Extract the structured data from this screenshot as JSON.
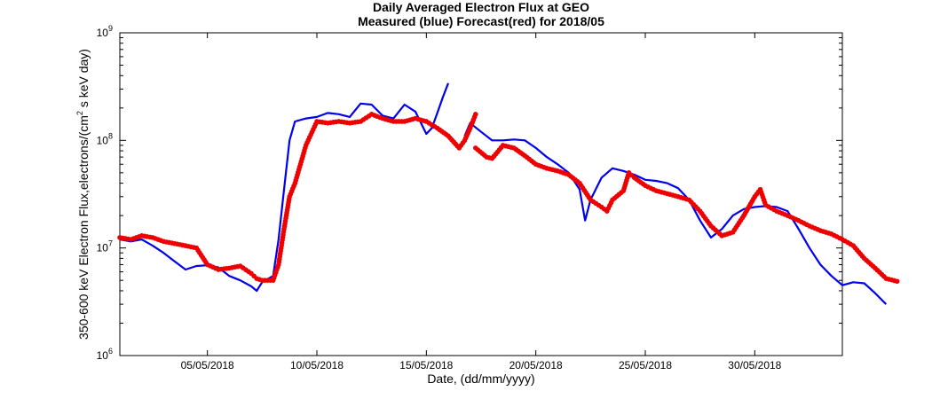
{
  "chart_data": {
    "type": "line",
    "title": "Daily Averaged Electron Flux at GEO",
    "subtitle": "Measured (blue) Forecast(red) for 2018/05",
    "xlabel": "Date, (dd/mm/yyyy)",
    "ylabel_parts": [
      "350-600 keV Electron Flux,electrons/(cm",
      "2",
      " s keV day)"
    ],
    "y_scale": "log",
    "ylim": [
      1000000,
      1000000000
    ],
    "xlim": [
      "2018-05-01",
      "2018-06-03"
    ],
    "x_ticks": [
      {
        "date": "2018-05-05",
        "label": "05/05/2018"
      },
      {
        "date": "2018-05-10",
        "label": "10/05/2018"
      },
      {
        "date": "2018-05-15",
        "label": "15/05/2018"
      },
      {
        "date": "2018-05-20",
        "label": "20/05/2018"
      },
      {
        "date": "2018-05-25",
        "label": "25/05/2018"
      },
      {
        "date": "2018-05-30",
        "label": "30/05/2018"
      }
    ],
    "y_ticks": [
      {
        "value": 1000000,
        "base": "10",
        "exp": "6"
      },
      {
        "value": 10000000,
        "base": "10",
        "exp": "7"
      },
      {
        "value": 100000000,
        "base": "10",
        "exp": "8"
      },
      {
        "value": 1000000000,
        "base": "10",
        "exp": "9"
      }
    ],
    "grid": false,
    "series": [
      {
        "color": "#0000ee",
        "style": "line",
        "segments": [
          [
            [
              "2018-05-01 00:00",
              12000000
            ],
            [
              "2018-05-01 12:00",
              11500000
            ],
            [
              "2018-05-02 00:00",
              12000000
            ],
            [
              "2018-05-02 12:00",
              10500000
            ],
            [
              "2018-05-03 00:00",
              9000000
            ],
            [
              "2018-05-03 12:00",
              7500000
            ],
            [
              "2018-05-04 00:00",
              6300000
            ],
            [
              "2018-05-04 12:00",
              6800000
            ],
            [
              "2018-05-05 00:00",
              6900000
            ],
            [
              "2018-05-05 12:00",
              6600000
            ],
            [
              "2018-05-06 00:00",
              5500000
            ],
            [
              "2018-05-06 12:00",
              5000000
            ],
            [
              "2018-05-07 00:00",
              4400000
            ],
            [
              "2018-05-07 06:00",
              4000000
            ],
            [
              "2018-05-07 12:00",
              4800000
            ],
            [
              "2018-05-08 00:00",
              5500000
            ],
            [
              "2018-05-08 06:00",
              12000000
            ],
            [
              "2018-05-08 12:00",
              35000000
            ],
            [
              "2018-05-08 18:00",
              100000000
            ],
            [
              "2018-05-09 00:00",
              150000000
            ],
            [
              "2018-05-09 12:00",
              160000000
            ],
            [
              "2018-05-10 00:00",
              165000000
            ],
            [
              "2018-05-10 12:00",
              180000000
            ],
            [
              "2018-05-11 00:00",
              175000000
            ],
            [
              "2018-05-11 12:00",
              165000000
            ],
            [
              "2018-05-12 00:00",
              220000000
            ],
            [
              "2018-05-12 12:00",
              215000000
            ],
            [
              "2018-05-13 00:00",
              170000000
            ],
            [
              "2018-05-13 12:00",
              160000000
            ],
            [
              "2018-05-14 00:00",
              215000000
            ],
            [
              "2018-05-14 12:00",
              185000000
            ],
            [
              "2018-05-15 00:00",
              115000000
            ],
            [
              "2018-05-15 06:00",
              130000000
            ],
            [
              "2018-05-15 12:00",
              180000000
            ],
            [
              "2018-05-15 18:00",
              250000000
            ],
            [
              "2018-05-16 00:00",
              340000000
            ]
          ],
          [
            [
              "2018-05-16 18:00",
              110000000
            ],
            [
              "2018-05-17 00:00",
              145000000
            ],
            [
              "2018-05-17 12:00",
              120000000
            ],
            [
              "2018-05-18 00:00",
              100000000
            ],
            [
              "2018-05-18 12:00",
              100000000
            ],
            [
              "2018-05-19 00:00",
              102000000
            ],
            [
              "2018-05-19 12:00",
              100000000
            ],
            [
              "2018-05-20 00:00",
              85000000
            ],
            [
              "2018-05-20 12:00",
              70000000
            ],
            [
              "2018-05-21 00:00",
              60000000
            ],
            [
              "2018-05-21 12:00",
              50000000
            ],
            [
              "2018-05-22 00:00",
              35000000
            ],
            [
              "2018-05-22 06:00",
              18000000
            ],
            [
              "2018-05-22 12:00",
              28000000
            ],
            [
              "2018-05-23 00:00",
              45000000
            ],
            [
              "2018-05-23 12:00",
              55000000
            ],
            [
              "2018-05-24 00:00",
              52000000
            ],
            [
              "2018-05-24 12:00",
              48000000
            ],
            [
              "2018-05-25 00:00",
              43000000
            ],
            [
              "2018-05-25 12:00",
              42000000
            ],
            [
              "2018-05-26 00:00",
              40000000
            ],
            [
              "2018-05-26 12:00",
              36000000
            ],
            [
              "2018-05-27 00:00",
              28000000
            ],
            [
              "2018-05-27 12:00",
              18000000
            ],
            [
              "2018-05-28 00:00",
              12500000
            ],
            [
              "2018-05-28 12:00",
              15000000
            ],
            [
              "2018-05-29 00:00",
              20000000
            ],
            [
              "2018-05-29 12:00",
              23000000
            ],
            [
              "2018-05-30 00:00",
              24000000
            ],
            [
              "2018-05-30 12:00",
              24500000
            ],
            [
              "2018-05-31 00:00",
              24000000
            ],
            [
              "2018-05-31 12:00",
              22000000
            ],
            [
              "2018-06-01 00:00",
              15000000
            ],
            [
              "2018-06-01 12:00",
              10000000
            ],
            [
              "2018-06-02 00:00",
              7000000
            ],
            [
              "2018-06-02 12:00",
              5500000
            ],
            [
              "2018-06-03 00:00",
              4500000
            ],
            [
              "2018-06-03 12:00",
              4800000
            ],
            [
              "2018-06-04 00:00",
              4700000
            ],
            [
              "2018-06-04 12:00",
              3800000
            ],
            [
              "2018-06-05 00:00",
              3000000
            ]
          ]
        ]
      },
      {
        "color": "#ee0000",
        "style": "dots",
        "segments": [
          [
            [
              "2018-05-01 00:00",
              12500000
            ],
            [
              "2018-05-01 12:00",
              12000000
            ],
            [
              "2018-05-02 00:00",
              13000000
            ],
            [
              "2018-05-02 12:00",
              12500000
            ],
            [
              "2018-05-03 00:00",
              11500000
            ],
            [
              "2018-05-03 12:00",
              11000000
            ],
            [
              "2018-05-04 00:00",
              10500000
            ],
            [
              "2018-05-04 12:00",
              10000000
            ],
            [
              "2018-05-05 00:00",
              7000000
            ],
            [
              "2018-05-05 12:00",
              6300000
            ],
            [
              "2018-05-06 00:00",
              6500000
            ],
            [
              "2018-05-06 12:00",
              6800000
            ],
            [
              "2018-05-07 00:00",
              5800000
            ],
            [
              "2018-05-07 06:00",
              5200000
            ],
            [
              "2018-05-07 12:00",
              5000000
            ],
            [
              "2018-05-08 00:00",
              5000000
            ],
            [
              "2018-05-08 06:00",
              7000000
            ],
            [
              "2018-05-08 12:00",
              15000000
            ],
            [
              "2018-05-08 18:00",
              30000000
            ],
            [
              "2018-05-09 00:00",
              40000000
            ],
            [
              "2018-05-09 06:00",
              60000000
            ],
            [
              "2018-05-09 12:00",
              90000000
            ],
            [
              "2018-05-10 00:00",
              150000000
            ],
            [
              "2018-05-10 12:00",
              145000000
            ],
            [
              "2018-05-11 00:00",
              150000000
            ],
            [
              "2018-05-11 12:00",
              145000000
            ],
            [
              "2018-05-12 00:00",
              150000000
            ],
            [
              "2018-05-12 12:00",
              175000000
            ],
            [
              "2018-05-13 00:00",
              160000000
            ],
            [
              "2018-05-13 12:00",
              150000000
            ],
            [
              "2018-05-14 00:00",
              150000000
            ],
            [
              "2018-05-14 12:00",
              160000000
            ],
            [
              "2018-05-15 00:00",
              150000000
            ],
            [
              "2018-05-15 12:00",
              130000000
            ],
            [
              "2018-05-16 00:00",
              110000000
            ],
            [
              "2018-05-16 12:00",
              85000000
            ],
            [
              "2018-05-16 18:00",
              100000000
            ],
            [
              "2018-05-17 00:00",
              130000000
            ],
            [
              "2018-05-17 06:00",
              175000000
            ]
          ],
          [
            [
              "2018-05-17 06:00",
              85000000
            ],
            [
              "2018-05-17 18:00",
              70000000
            ],
            [
              "2018-05-18 00:00",
              68000000
            ],
            [
              "2018-05-18 06:00",
              78000000
            ],
            [
              "2018-05-18 12:00",
              90000000
            ],
            [
              "2018-05-19 00:00",
              85000000
            ],
            [
              "2018-05-19 12:00",
              72000000
            ],
            [
              "2018-05-20 00:00",
              60000000
            ],
            [
              "2018-05-20 12:00",
              55000000
            ],
            [
              "2018-05-21 00:00",
              52000000
            ],
            [
              "2018-05-21 12:00",
              48000000
            ],
            [
              "2018-05-22 00:00",
              40000000
            ],
            [
              "2018-05-22 12:00",
              28000000
            ],
            [
              "2018-05-23 00:00",
              24000000
            ],
            [
              "2018-05-23 06:00",
              22000000
            ],
            [
              "2018-05-23 12:00",
              28000000
            ],
            [
              "2018-05-24 00:00",
              34000000
            ],
            [
              "2018-05-24 06:00",
              50000000
            ],
            [
              "2018-05-24 12:00",
              45000000
            ],
            [
              "2018-05-25 00:00",
              38000000
            ],
            [
              "2018-05-25 12:00",
              34000000
            ],
            [
              "2018-05-26 00:00",
              32000000
            ],
            [
              "2018-05-26 12:00",
              30000000
            ],
            [
              "2018-05-27 00:00",
              28000000
            ],
            [
              "2018-05-27 12:00",
              22000000
            ],
            [
              "2018-05-28 00:00",
              16000000
            ],
            [
              "2018-05-28 12:00",
              13000000
            ],
            [
              "2018-05-29 00:00",
              14000000
            ],
            [
              "2018-05-29 12:00",
              20000000
            ],
            [
              "2018-05-30 00:00",
              30000000
            ],
            [
              "2018-05-30 06:00",
              35000000
            ],
            [
              "2018-05-30 12:00",
              25000000
            ],
            [
              "2018-05-31 00:00",
              22000000
            ],
            [
              "2018-05-31 12:00",
              20000000
            ],
            [
              "2018-06-01 00:00",
              18000000
            ],
            [
              "2018-06-01 12:00",
              16000000
            ],
            [
              "2018-06-02 00:00",
              14500000
            ],
            [
              "2018-06-02 12:00",
              13500000
            ],
            [
              "2018-06-03 00:00",
              12000000
            ],
            [
              "2018-06-03 12:00",
              10500000
            ],
            [
              "2018-06-04 00:00",
              8000000
            ],
            [
              "2018-06-04 12:00",
              6500000
            ],
            [
              "2018-06-05 00:00",
              5200000
            ],
            [
              "2018-06-05 12:00",
              4900000
            ]
          ]
        ]
      }
    ]
  }
}
